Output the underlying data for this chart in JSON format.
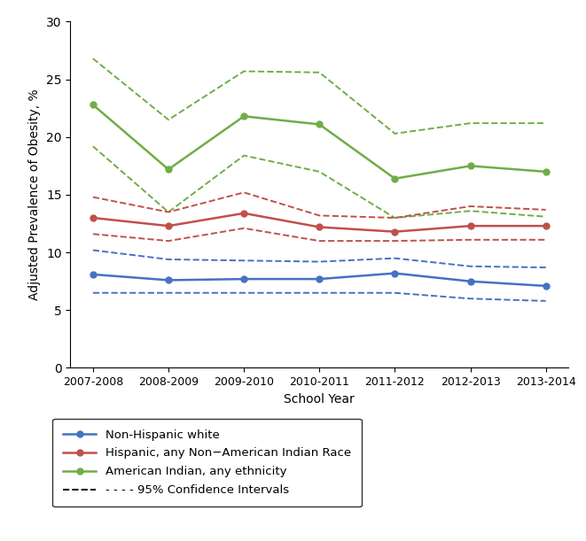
{
  "school_years": [
    "2007-2008",
    "2008-2009",
    "2009-2010",
    "2010-2011",
    "2011-2012",
    "2012-2013",
    "2013-2014"
  ],
  "white_mean": [
    8.1,
    7.6,
    7.7,
    7.7,
    8.2,
    7.5,
    7.1
  ],
  "white_ci_low": [
    6.5,
    6.5,
    6.5,
    6.5,
    6.5,
    6.0,
    5.8
  ],
  "white_ci_high": [
    10.2,
    9.4,
    9.3,
    9.2,
    9.5,
    8.8,
    8.7
  ],
  "hispanic_mean": [
    13.0,
    12.3,
    13.4,
    12.2,
    11.8,
    12.3,
    12.3
  ],
  "hispanic_ci_low": [
    11.6,
    11.0,
    12.1,
    11.0,
    11.0,
    11.1,
    11.1
  ],
  "hispanic_ci_high": [
    14.8,
    13.5,
    15.2,
    13.2,
    13.0,
    14.0,
    13.7
  ],
  "indian_mean": [
    22.8,
    17.2,
    21.8,
    21.1,
    16.4,
    17.5,
    17.0
  ],
  "indian_ci_low": [
    19.2,
    13.5,
    18.4,
    17.0,
    13.0,
    13.6,
    13.1
  ],
  "indian_ci_high": [
    26.8,
    21.5,
    25.7,
    25.6,
    20.3,
    21.2,
    21.2
  ],
  "white_color": "#4472C4",
  "hispanic_color": "#C0504D",
  "indian_color": "#70AD47",
  "ylim": [
    0,
    30
  ],
  "yticks": [
    0,
    5,
    10,
    15,
    20,
    25,
    30
  ],
  "ylabel": "Adjusted Prevalence of Obesity, %",
  "xlabel": "School Year",
  "legend_labels": [
    "Non-Hispanic white",
    "Hispanic, any Non−American Indian Race",
    "American Indian, any ethnicity",
    "- - - - 95% Confidence Intervals"
  ]
}
